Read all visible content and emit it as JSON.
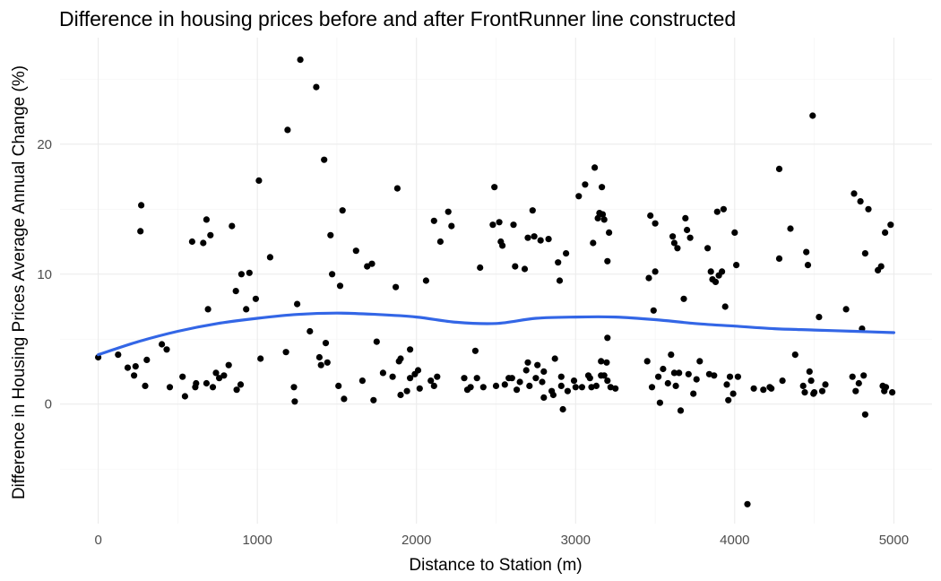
{
  "chart_data": {
    "type": "scatter",
    "title": "Difference in housing prices before and after FrontRunner line constructed",
    "xlabel": "Distance to Station (m)",
    "ylabel": "Difference in Housing Prices Average Annual Change (%)",
    "xlim": [
      -240,
      5240
    ],
    "ylim": [
      -9.2,
      28.2
    ],
    "x_ticks": [
      0,
      1000,
      2000,
      3000,
      4000,
      5000
    ],
    "y_ticks": [
      0,
      10,
      20
    ],
    "x_tick_labels": [
      "0",
      "1000",
      "2000",
      "3000",
      "4000",
      "5000"
    ],
    "y_tick_labels": [
      "0",
      "10",
      "20"
    ],
    "grid": true,
    "point_color": "#000000",
    "smooth_color": "#3366e6",
    "smooth": {
      "x": [
        0,
        250,
        500,
        750,
        1000,
        1250,
        1500,
        1750,
        2000,
        2250,
        2500,
        2750,
        3000,
        3250,
        3500,
        3750,
        4000,
        4250,
        4500,
        4750,
        5000
      ],
      "y": [
        3.8,
        4.8,
        5.6,
        6.2,
        6.6,
        6.9,
        7.0,
        6.9,
        6.7,
        6.3,
        6.2,
        6.6,
        6.7,
        6.7,
        6.5,
        6.2,
        6.0,
        5.8,
        5.7,
        5.6,
        5.5
      ]
    },
    "points": [
      [
        0,
        3.6
      ],
      [
        125,
        3.8
      ],
      [
        185,
        2.8
      ],
      [
        225,
        2.2
      ],
      [
        235,
        2.9
      ],
      [
        270,
        15.3
      ],
      [
        265,
        13.3
      ],
      [
        295,
        1.4
      ],
      [
        305,
        3.4
      ],
      [
        400,
        4.6
      ],
      [
        430,
        4.2
      ],
      [
        450,
        1.3
      ],
      [
        530,
        2.1
      ],
      [
        545,
        0.6
      ],
      [
        590,
        12.5
      ],
      [
        610,
        1.3
      ],
      [
        615,
        1.6
      ],
      [
        660,
        12.4
      ],
      [
        680,
        14.2
      ],
      [
        680,
        1.6
      ],
      [
        690,
        7.3
      ],
      [
        705,
        13.0
      ],
      [
        720,
        1.3
      ],
      [
        740,
        2.4
      ],
      [
        760,
        2.0
      ],
      [
        790,
        2.2
      ],
      [
        820,
        3.0
      ],
      [
        840,
        13.7
      ],
      [
        865,
        8.7
      ],
      [
        870,
        1.1
      ],
      [
        895,
        1.5
      ],
      [
        900,
        10.0
      ],
      [
        930,
        7.3
      ],
      [
        950,
        10.1
      ],
      [
        990,
        8.1
      ],
      [
        1010,
        17.2
      ],
      [
        1020,
        3.5
      ],
      [
        1080,
        11.3
      ],
      [
        1180,
        4.0
      ],
      [
        1190,
        21.1
      ],
      [
        1230,
        1.3
      ],
      [
        1235,
        0.2
      ],
      [
        1250,
        7.7
      ],
      [
        1270,
        26.5
      ],
      [
        1330,
        5.6
      ],
      [
        1370,
        24.4
      ],
      [
        1390,
        3.6
      ],
      [
        1400,
        3.0
      ],
      [
        1420,
        18.8
      ],
      [
        1430,
        4.7
      ],
      [
        1440,
        3.2
      ],
      [
        1460,
        13.0
      ],
      [
        1470,
        10.0
      ],
      [
        1510,
        1.4
      ],
      [
        1520,
        9.1
      ],
      [
        1535,
        14.9
      ],
      [
        1545,
        0.4
      ],
      [
        1620,
        11.8
      ],
      [
        1660,
        1.8
      ],
      [
        1690,
        10.6
      ],
      [
        1720,
        10.8
      ],
      [
        1730,
        0.3
      ],
      [
        1750,
        4.8
      ],
      [
        1790,
        2.4
      ],
      [
        1850,
        2.1
      ],
      [
        1870,
        9.0
      ],
      [
        1880,
        16.6
      ],
      [
        1890,
        3.3
      ],
      [
        1900,
        0.7
      ],
      [
        1900,
        3.5
      ],
      [
        1940,
        1.0
      ],
      [
        1960,
        4.2
      ],
      [
        1960,
        2.0
      ],
      [
        1990,
        2.3
      ],
      [
        2010,
        2.6
      ],
      [
        2020,
        1.2
      ],
      [
        2060,
        9.5
      ],
      [
        2090,
        1.8
      ],
      [
        2110,
        14.1
      ],
      [
        2110,
        1.4
      ],
      [
        2130,
        2.1
      ],
      [
        2150,
        12.5
      ],
      [
        2200,
        14.8
      ],
      [
        2220,
        13.7
      ],
      [
        2300,
        2.0
      ],
      [
        2320,
        1.1
      ],
      [
        2340,
        1.3
      ],
      [
        2370,
        4.1
      ],
      [
        2380,
        2.0
      ],
      [
        2400,
        10.5
      ],
      [
        2420,
        1.3
      ],
      [
        2480,
        13.8
      ],
      [
        2490,
        16.7
      ],
      [
        2500,
        1.4
      ],
      [
        2520,
        14.0
      ],
      [
        2530,
        12.5
      ],
      [
        2540,
        12.2
      ],
      [
        2555,
        1.5
      ],
      [
        2580,
        2.0
      ],
      [
        2600,
        2.0
      ],
      [
        2610,
        13.8
      ],
      [
        2620,
        10.6
      ],
      [
        2630,
        1.1
      ],
      [
        2650,
        1.7
      ],
      [
        2680,
        10.4
      ],
      [
        2690,
        2.6
      ],
      [
        2700,
        12.8
      ],
      [
        2700,
        3.2
      ],
      [
        2710,
        1.4
      ],
      [
        2730,
        14.9
      ],
      [
        2740,
        12.9
      ],
      [
        2750,
        2.0
      ],
      [
        2760,
        3.0
      ],
      [
        2780,
        12.6
      ],
      [
        2790,
        1.7
      ],
      [
        2800,
        2.5
      ],
      [
        2800,
        0.5
      ],
      [
        2830,
        12.7
      ],
      [
        2850,
        1.0
      ],
      [
        2860,
        0.7
      ],
      [
        2870,
        3.5
      ],
      [
        2890,
        10.9
      ],
      [
        2900,
        9.5
      ],
      [
        2910,
        2.1
      ],
      [
        2910,
        1.4
      ],
      [
        2920,
        -0.4
      ],
      [
        2940,
        11.6
      ],
      [
        2950,
        1.0
      ],
      [
        2990,
        1.8
      ],
      [
        3000,
        1.3
      ],
      [
        3020,
        16.0
      ],
      [
        3040,
        1.3
      ],
      [
        3060,
        16.9
      ],
      [
        3080,
        2.2
      ],
      [
        3090,
        2.0
      ],
      [
        3100,
        1.3
      ],
      [
        3110,
        12.4
      ],
      [
        3120,
        18.2
      ],
      [
        3130,
        1.4
      ],
      [
        3140,
        14.3
      ],
      [
        3150,
        14.7
      ],
      [
        3160,
        3.3
      ],
      [
        3160,
        2.2
      ],
      [
        3165,
        16.7
      ],
      [
        3170,
        14.6
      ],
      [
        3180,
        14.2
      ],
      [
        3180,
        2.2
      ],
      [
        3195,
        3.2
      ],
      [
        3200,
        5.1
      ],
      [
        3200,
        11.0
      ],
      [
        3200,
        1.8
      ],
      [
        3210,
        13.2
      ],
      [
        3220,
        1.3
      ],
      [
        3250,
        1.2
      ],
      [
        3450,
        3.3
      ],
      [
        3460,
        9.7
      ],
      [
        3470,
        14.5
      ],
      [
        3480,
        1.3
      ],
      [
        3490,
        7.2
      ],
      [
        3500,
        10.2
      ],
      [
        3500,
        13.9
      ],
      [
        3520,
        2.1
      ],
      [
        3530,
        0.1
      ],
      [
        3550,
        2.7
      ],
      [
        3580,
        1.6
      ],
      [
        3600,
        3.8
      ],
      [
        3610,
        12.9
      ],
      [
        3620,
        12.4
      ],
      [
        3620,
        2.4
      ],
      [
        3630,
        1.4
      ],
      [
        3640,
        12.0
      ],
      [
        3650,
        2.4
      ],
      [
        3660,
        -0.5
      ],
      [
        3680,
        8.1
      ],
      [
        3690,
        14.3
      ],
      [
        3700,
        13.4
      ],
      [
        3710,
        2.3
      ],
      [
        3720,
        12.8
      ],
      [
        3740,
        0.8
      ],
      [
        3760,
        1.9
      ],
      [
        3780,
        3.3
      ],
      [
        3830,
        12.0
      ],
      [
        3840,
        2.3
      ],
      [
        3850,
        10.2
      ],
      [
        3860,
        9.6
      ],
      [
        3870,
        2.2
      ],
      [
        3880,
        9.4
      ],
      [
        3890,
        14.8
      ],
      [
        3900,
        9.9
      ],
      [
        3920,
        10.2
      ],
      [
        3930,
        15.0
      ],
      [
        3940,
        7.5
      ],
      [
        3950,
        1.5
      ],
      [
        3960,
        0.3
      ],
      [
        3970,
        2.1
      ],
      [
        3990,
        0.8
      ],
      [
        4000,
        13.2
      ],
      [
        4010,
        10.7
      ],
      [
        4020,
        2.1
      ],
      [
        4080,
        -7.7
      ],
      [
        4120,
        1.2
      ],
      [
        4180,
        1.1
      ],
      [
        4220,
        1.3
      ],
      [
        4230,
        1.2
      ],
      [
        4280,
        18.1
      ],
      [
        4280,
        11.2
      ],
      [
        4300,
        1.8
      ],
      [
        4350,
        13.5
      ],
      [
        4380,
        3.8
      ],
      [
        4430,
        1.4
      ],
      [
        4440,
        0.9
      ],
      [
        4450,
        11.7
      ],
      [
        4460,
        10.7
      ],
      [
        4470,
        2.5
      ],
      [
        4480,
        1.8
      ],
      [
        4490,
        22.2
      ],
      [
        4495,
        0.8
      ],
      [
        4500,
        0.9
      ],
      [
        4530,
        6.7
      ],
      [
        4550,
        1.0
      ],
      [
        4570,
        1.5
      ],
      [
        4700,
        7.3
      ],
      [
        4740,
        2.1
      ],
      [
        4750,
        16.2
      ],
      [
        4760,
        1.0
      ],
      [
        4780,
        1.6
      ],
      [
        4790,
        15.6
      ],
      [
        4800,
        5.8
      ],
      [
        4810,
        2.2
      ],
      [
        4820,
        -0.8
      ],
      [
        4820,
        11.6
      ],
      [
        4840,
        15.0
      ],
      [
        4900,
        10.3
      ],
      [
        4920,
        10.6
      ],
      [
        4930,
        1.4
      ],
      [
        4940,
        1.0
      ],
      [
        4945,
        13.2
      ],
      [
        4950,
        1.3
      ],
      [
        4980,
        13.8
      ],
      [
        4990,
        0.9
      ]
    ]
  }
}
